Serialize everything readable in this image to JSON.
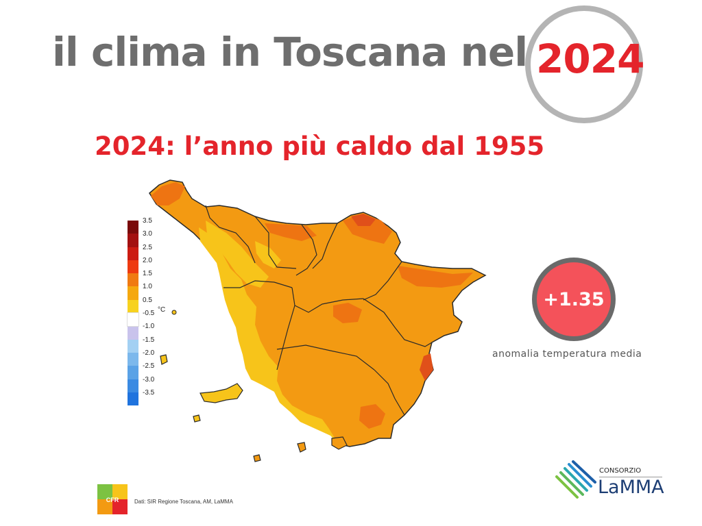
{
  "title": {
    "text": "il clima in Toscana nel",
    "year": "2024"
  },
  "subtitle": "2024: l’anno più caldo dal 1955",
  "legend": {
    "unit": "°C",
    "ticks": [
      "3.5",
      "3.0",
      "2.5",
      "2.0",
      "1.5",
      "1.0",
      "0.5",
      "-0.5",
      "-1.0",
      "-1.5",
      "-2.0",
      "-2.5",
      "-3.0",
      "-3.5"
    ],
    "colors": [
      "#7a0a0a",
      "#a31010",
      "#cc1b12",
      "#ee3a10",
      "#f07a12",
      "#f5a80f",
      "#f7d21f",
      "#ffffff",
      "#c9c3ec",
      "#a3d0f3",
      "#7cb8ec",
      "#5aa2e6",
      "#3a8ae2",
      "#1f73de"
    ]
  },
  "map_colors": {
    "anomaly_0_5_1_0": "#f7c41a",
    "anomaly_1_0_1_5": "#f39a12",
    "anomaly_1_5_2_0": "#ee7412",
    "anomaly_2_0_2_5": "#e0501a",
    "borders": "#2a2a2a"
  },
  "anomaly": {
    "value": "+1.35",
    "label": "anomalia temperatura media"
  },
  "footer": {
    "credits": "Dati: SIR Regione Toscana, AM, LaMMA",
    "cfr_logo_text": "CFR",
    "consortium_label": "CONSORZIO",
    "consortium_name": "LaMMA"
  },
  "colors": {
    "accent_red": "#e4242b",
    "title_gray": "#6e6e6e",
    "ring_gray": "#b4b4b4",
    "badge_red": "#f4525a",
    "lamma_blue": "#1d3e74"
  }
}
